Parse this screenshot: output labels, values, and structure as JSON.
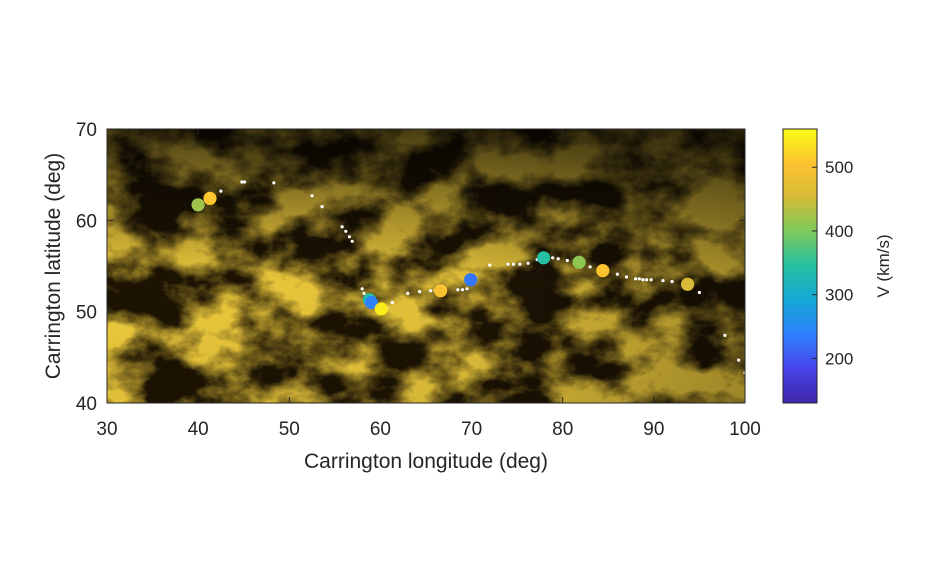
{
  "chart_data": {
    "type": "scatter",
    "xlabel": "Carrington longitude (deg)",
    "ylabel": "Carrington latitude (deg)",
    "xlim": [
      30,
      100
    ],
    "ylim": [
      40,
      70
    ],
    "xticks": [
      "30",
      "40",
      "50",
      "60",
      "70",
      "80",
      "90",
      "100"
    ],
    "yticks": [
      "40",
      "50",
      "60",
      "70"
    ],
    "background": "solar EUV intensity map (gold colormap)",
    "grid": false,
    "colorbar": {
      "label": "V (km/s)",
      "range": [
        130,
        560
      ],
      "ticks": [
        "200",
        "300",
        "400",
        "500"
      ],
      "colormap": "parula"
    },
    "trajectory": [
      [
        41.5,
        62.5
      ],
      [
        42.5,
        63.2
      ],
      [
        44.8,
        64.2
      ],
      [
        45.1,
        64.2
      ],
      [
        48.3,
        64.1
      ],
      [
        52.5,
        62.7
      ],
      [
        53.6,
        61.5
      ],
      [
        55.8,
        59.3
      ],
      [
        56.2,
        58.8
      ],
      [
        56.6,
        58.2
      ],
      [
        56.9,
        57.7
      ],
      [
        58.0,
        52.5
      ],
      [
        58.2,
        52.0
      ],
      [
        58.5,
        51.6
      ],
      [
        59.0,
        51.2
      ],
      [
        60.7,
        50.4
      ],
      [
        61.3,
        51.0
      ],
      [
        63.0,
        52.0
      ],
      [
        64.3,
        52.2
      ],
      [
        65.5,
        52.3
      ],
      [
        66.0,
        52.3
      ],
      [
        68.5,
        52.4
      ],
      [
        69.0,
        52.4
      ],
      [
        69.5,
        52.5
      ],
      [
        70.1,
        53.4
      ],
      [
        72.0,
        55.1
      ],
      [
        74.0,
        55.2
      ],
      [
        74.6,
        55.2
      ],
      [
        75.3,
        55.2
      ],
      [
        76.2,
        55.3
      ],
      [
        77.2,
        55.7
      ],
      [
        78.9,
        55.9
      ],
      [
        79.5,
        55.8
      ],
      [
        80.5,
        55.6
      ],
      [
        83.0,
        54.9
      ],
      [
        86.0,
        54.1
      ],
      [
        87.0,
        53.8
      ],
      [
        88.0,
        53.6
      ],
      [
        88.4,
        53.6
      ],
      [
        88.8,
        53.5
      ],
      [
        89.2,
        53.5
      ],
      [
        89.7,
        53.5
      ],
      [
        91.0,
        53.4
      ],
      [
        92.0,
        53.3
      ],
      [
        95.0,
        52.1
      ],
      [
        97.8,
        47.4
      ],
      [
        99.3,
        44.7
      ],
      [
        100.0,
        43.3
      ]
    ],
    "points": [
      {
        "x": 40.0,
        "y": 61.7,
        "v": 420
      },
      {
        "x": 41.3,
        "y": 62.4,
        "v": 510
      },
      {
        "x": 58.8,
        "y": 51.3,
        "v": 340
      },
      {
        "x": 59.0,
        "y": 51.0,
        "v": 240
      },
      {
        "x": 60.1,
        "y": 50.3,
        "v": 545
      },
      {
        "x": 66.6,
        "y": 52.3,
        "v": 500
      },
      {
        "x": 69.9,
        "y": 53.5,
        "v": 230
      },
      {
        "x": 77.9,
        "y": 55.9,
        "v": 345
      },
      {
        "x": 81.8,
        "y": 55.4,
        "v": 410
      },
      {
        "x": 84.4,
        "y": 54.5,
        "v": 505
      },
      {
        "x": 93.7,
        "y": 53.0,
        "v": 455
      }
    ]
  }
}
